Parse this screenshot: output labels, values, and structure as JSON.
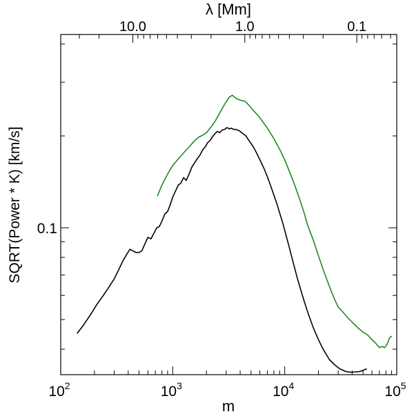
{
  "chart_data": {
    "type": "line",
    "title": "",
    "xlabel": "m",
    "ylabel": "SQRT(Power * K)  [km/s]",
    "top_xlabel": "λ  [Mm]",
    "xscale": "log",
    "yscale": "log",
    "xlim": [
      100,
      100000
    ],
    "ylim": [
      0.033,
      0.43
    ],
    "grid": false,
    "x_ticks": [
      {
        "value": 100,
        "base": "10",
        "exp": "2"
      },
      {
        "value": 1000,
        "base": "10",
        "exp": "3"
      },
      {
        "value": 10000,
        "base": "10",
        "exp": "4"
      },
      {
        "value": 100000,
        "base": "10",
        "exp": "5"
      }
    ],
    "y_ticks": [
      {
        "value": 0.1,
        "label": "0.1"
      }
    ],
    "top_ticks": [
      {
        "m": 440,
        "label": "10.0"
      },
      {
        "m": 4400,
        "label": "1.0"
      },
      {
        "m": 44000,
        "label": "0.1"
      }
    ],
    "series": [
      {
        "name": "black",
        "color": "#000000",
        "x": [
          140,
          160,
          185,
          210,
          240,
          270,
          300,
          330,
          360,
          390,
          415,
          440,
          470,
          500,
          530,
          560,
          600,
          640,
          680,
          720,
          760,
          800,
          850,
          900,
          950,
          1000,
          1060,
          1120,
          1180,
          1250,
          1320,
          1400,
          1480,
          1560,
          1650,
          1750,
          1850,
          1950,
          2050,
          2150,
          2250,
          2370,
          2500,
          2630,
          2760,
          2900,
          3050,
          3200,
          3350,
          3500,
          3650,
          3800,
          4000,
          4200,
          4500,
          4800,
          5200,
          5600,
          6000,
          6500,
          7000,
          7500,
          8000,
          8500,
          9000,
          9500,
          10000,
          11000,
          12000,
          13000,
          14000,
          15000,
          16000,
          18000,
          20000,
          22000,
          25000,
          28000,
          31000,
          35000,
          39000,
          43000,
          47000,
          51000,
          54000
        ],
        "y": [
          0.045,
          0.048,
          0.052,
          0.056,
          0.06,
          0.064,
          0.068,
          0.073,
          0.078,
          0.082,
          0.085,
          0.084,
          0.083,
          0.083,
          0.084,
          0.088,
          0.093,
          0.092,
          0.096,
          0.1,
          0.101,
          0.105,
          0.111,
          0.113,
          0.119,
          0.126,
          0.132,
          0.138,
          0.14,
          0.146,
          0.143,
          0.15,
          0.158,
          0.163,
          0.168,
          0.173,
          0.18,
          0.184,
          0.19,
          0.193,
          0.198,
          0.203,
          0.207,
          0.205,
          0.209,
          0.21,
          0.213,
          0.211,
          0.212,
          0.21,
          0.21,
          0.209,
          0.207,
          0.204,
          0.2,
          0.193,
          0.185,
          0.176,
          0.167,
          0.157,
          0.147,
          0.137,
          0.128,
          0.12,
          0.112,
          0.105,
          0.098,
          0.086,
          0.076,
          0.068,
          0.062,
          0.057,
          0.053,
          0.047,
          0.043,
          0.04,
          0.037,
          0.0355,
          0.0345,
          0.0338,
          0.0336,
          0.0337,
          0.0338,
          0.0342,
          0.0345
        ]
      },
      {
        "name": "green",
        "color": "#1e8a1e",
        "x": [
          730,
          800,
          900,
          1000,
          1120,
          1250,
          1400,
          1550,
          1700,
          1850,
          2000,
          2200,
          2400,
          2600,
          2800,
          3000,
          3200,
          3400,
          3700,
          4000,
          4400,
          4800,
          5200,
          5800,
          6400,
          7000,
          8000,
          9000,
          10000,
          11000,
          12000,
          13000,
          14000,
          15000,
          16000,
          18000,
          20000,
          22000,
          24000,
          26000,
          28000,
          30000,
          33000,
          36000,
          40000,
          45000,
          50000,
          55000,
          60000,
          65000,
          70000,
          74000,
          78000,
          82000,
          86000,
          90000
        ],
        "y": [
          0.127,
          0.138,
          0.15,
          0.16,
          0.168,
          0.176,
          0.184,
          0.192,
          0.198,
          0.201,
          0.205,
          0.214,
          0.224,
          0.236,
          0.248,
          0.259,
          0.268,
          0.272,
          0.265,
          0.262,
          0.26,
          0.252,
          0.243,
          0.233,
          0.222,
          0.212,
          0.196,
          0.181,
          0.167,
          0.153,
          0.141,
          0.13,
          0.12,
          0.111,
          0.102,
          0.091,
          0.081,
          0.073,
          0.067,
          0.062,
          0.058,
          0.055,
          0.053,
          0.051,
          0.049,
          0.047,
          0.0455,
          0.0445,
          0.043,
          0.0418,
          0.0405,
          0.0408,
          0.0405,
          0.0415,
          0.0435,
          0.0442
        ]
      }
    ]
  }
}
